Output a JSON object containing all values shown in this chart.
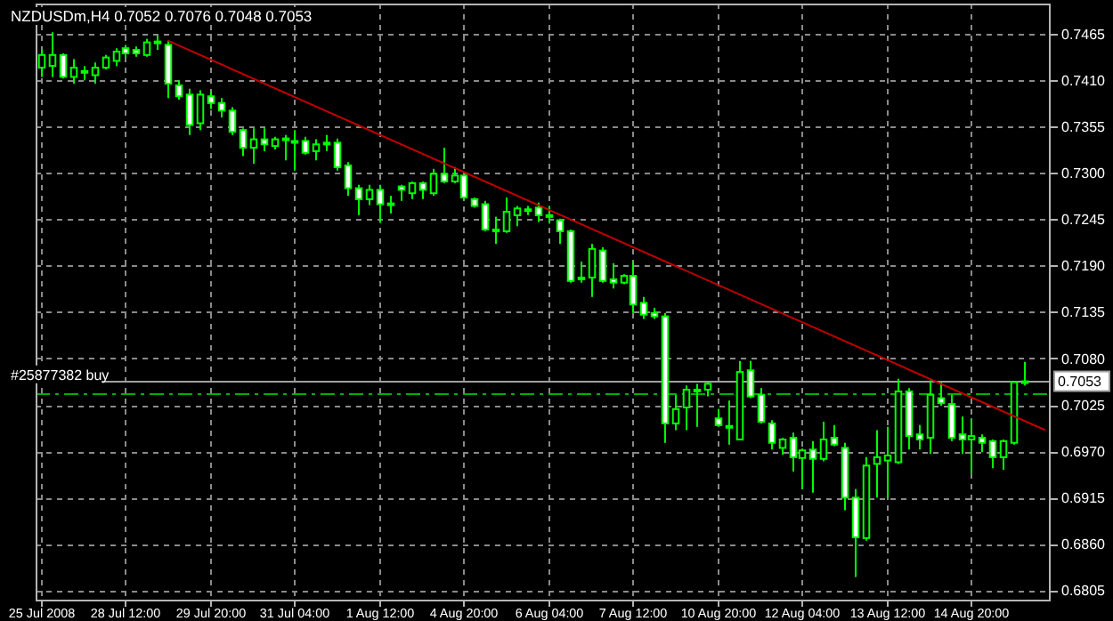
{
  "chart_data": {
    "type": "candlestick",
    "title": "NZDUSDm,H4 0.7052 0.7076 0.7048 0.7053",
    "categories": [
      "25 Jul 2008",
      null,
      null,
      null,
      null,
      null,
      null,
      null,
      "28 Jul 12:00",
      null,
      null,
      null,
      null,
      null,
      null,
      null,
      "29 Jul 20:00",
      null,
      null,
      null,
      null,
      null,
      null,
      null,
      "31 Jul 04:00",
      null,
      null,
      null,
      null,
      null,
      null,
      null,
      "1 Aug 12:00",
      null,
      null,
      null,
      null,
      null,
      null,
      null,
      "4 Aug 20:00",
      null,
      null,
      null,
      null,
      null,
      null,
      null,
      "6 Aug 04:00",
      null,
      null,
      null,
      null,
      null,
      null,
      null,
      "7 Aug 12:00",
      null,
      null,
      null,
      null,
      null,
      null,
      null,
      "10 Aug 20:00",
      null,
      null,
      null,
      null,
      null,
      null,
      null,
      "12 Aug 04:00",
      null,
      null,
      null,
      null,
      null,
      null,
      null,
      "13 Aug 12:00",
      null,
      null,
      null,
      null,
      null,
      null,
      null,
      "14 Aug 20:00",
      null,
      null,
      null,
      null,
      null,
      null,
      null
    ],
    "color": "#00ff00",
    "colors": [
      "#000000",
      "#000000",
      "#ffffff",
      "#000000",
      "#ffffff",
      "#000000",
      "#000000",
      "#000000",
      "#ffffff",
      "#ffffff",
      "#000000",
      "#ffffff",
      "#ffffff",
      "#ffffff",
      "#ffffff",
      "#000000",
      "#ffffff",
      "#ffffff",
      "#ffffff",
      "#ffffff",
      "#000000",
      "#ffffff",
      "#000000",
      "#ffffff",
      "#ffffff",
      "#ffffff",
      "#000000",
      "#ffffff",
      "#ffffff",
      "#ffffff",
      "#ffffff",
      "#000000",
      "#ffffff",
      "#ffffff",
      "#ffffff",
      "#000000",
      "#ffffff",
      "#000000",
      "#ffffff",
      "#000000",
      "#ffffff",
      "#ffffff",
      "#ffffff",
      "#ffffff",
      "#000000",
      "#000000",
      "#ffffff",
      "#ffffff",
      "#ffffff",
      "#ffffff",
      "#ffffff",
      "#ffffff",
      "#000000",
      "#ffffff",
      "#ffffff",
      "#000000",
      "#ffffff",
      "#ffffff",
      "#ffffff",
      "#ffffff",
      "#000000",
      "#000000",
      "#ffffff",
      "#000000",
      "#ffffff",
      "#ffffff",
      "#000000",
      "#ffffff",
      "#ffffff",
      "#ffffff",
      "#000000",
      "#ffffff",
      "#000000",
      "#ffffff",
      "#000000",
      "#ffffff",
      "#ffffff",
      "#ffffff",
      "#000000",
      "#000000",
      "#000000",
      "#000000",
      "#ffffff",
      "#ffffff",
      "#000000",
      "#ffffff",
      "#ffffff",
      "#ffffff",
      "#000000",
      "#ffffff",
      "#ffffff",
      "#000000",
      "#000000",
      "#000000",
      null,
      null
    ],
    "ohlc": [
      [
        0.7425,
        0.7446,
        0.7414,
        0.744
      ],
      [
        0.7427,
        0.7467,
        0.7414,
        0.744
      ],
      [
        0.744,
        0.7442,
        0.7412,
        0.7414
      ],
      [
        0.7414,
        0.7435,
        0.7406,
        0.7425
      ],
      [
        0.7421,
        0.7427,
        0.741,
        0.742
      ],
      [
        0.7416,
        0.7431,
        0.7406,
        0.7425
      ],
      [
        0.7425,
        0.744,
        0.7423,
        0.7437
      ],
      [
        0.7433,
        0.7448,
        0.7427,
        0.7444
      ],
      [
        0.7448,
        0.7452,
        0.7437,
        0.7442
      ],
      [
        0.7446,
        0.745,
        0.7438,
        0.7442
      ],
      [
        0.744,
        0.7459,
        0.7438,
        0.7455
      ],
      [
        0.7456,
        0.7463,
        0.7446,
        0.7455
      ],
      [
        0.7452,
        0.7457,
        0.7389,
        0.7406
      ],
      [
        0.7404,
        0.741,
        0.7387,
        0.7391
      ],
      [
        0.7393,
        0.74,
        0.7345,
        0.7357
      ],
      [
        0.7359,
        0.7398,
        0.7351,
        0.7393
      ],
      [
        0.7391,
        0.7397,
        0.7376,
        0.7383
      ],
      [
        0.7383,
        0.7389,
        0.7366,
        0.7374
      ],
      [
        0.7374,
        0.7378,
        0.7345,
        0.7349
      ],
      [
        0.7351,
        0.7353,
        0.732,
        0.733
      ],
      [
        0.733,
        0.7353,
        0.7311,
        0.734
      ],
      [
        0.734,
        0.7353,
        0.7326,
        0.7334
      ],
      [
        0.7332,
        0.7343,
        0.7328,
        0.734
      ],
      [
        0.7341,
        0.7345,
        0.7315,
        0.7339
      ],
      [
        0.7338,
        0.7351,
        0.7303,
        0.7337
      ],
      [
        0.7338,
        0.7343,
        0.7322,
        0.7324
      ],
      [
        0.7326,
        0.734,
        0.7315,
        0.7334
      ],
      [
        0.7336,
        0.7345,
        0.7326,
        0.7335
      ],
      [
        0.7336,
        0.7341,
        0.7303,
        0.7307
      ],
      [
        0.7309,
        0.7313,
        0.7273,
        0.7282
      ],
      [
        0.7282,
        0.7286,
        0.725,
        0.7269
      ],
      [
        0.7269,
        0.7286,
        0.7262,
        0.728
      ],
      [
        0.728,
        0.7286,
        0.7241,
        0.7263
      ],
      [
        0.7264,
        0.7273,
        0.7252,
        0.7263
      ],
      [
        0.7284,
        0.7286,
        0.7267,
        0.728
      ],
      [
        0.7276,
        0.729,
        0.7269,
        0.7288
      ],
      [
        0.7288,
        0.729,
        0.7269,
        0.728
      ],
      [
        0.7276,
        0.7305,
        0.7273,
        0.7299
      ],
      [
        0.7299,
        0.733,
        0.7288,
        0.729
      ],
      [
        0.729,
        0.7307,
        0.7288,
        0.7297
      ],
      [
        0.7297,
        0.7299,
        0.7269,
        0.7271
      ],
      [
        0.7269,
        0.7271,
        0.7259,
        0.7261
      ],
      [
        0.7263,
        0.7267,
        0.7231,
        0.7233
      ],
      [
        0.7233,
        0.7248,
        0.7216,
        0.7232
      ],
      [
        0.7231,
        0.7271,
        0.7229,
        0.7254
      ],
      [
        0.725,
        0.7261,
        0.7237,
        0.7258
      ],
      [
        0.7257,
        0.7261,
        0.725,
        0.7256
      ],
      [
        0.7259,
        0.7265,
        0.7242,
        0.725
      ],
      [
        0.725,
        0.7261,
        0.724,
        0.7248
      ],
      [
        0.7244,
        0.7246,
        0.7216,
        0.7231
      ],
      [
        0.7231,
        0.7233,
        0.717,
        0.7172
      ],
      [
        0.7176,
        0.7195,
        0.717,
        0.7175
      ],
      [
        0.7176,
        0.7216,
        0.7153,
        0.721
      ],
      [
        0.7208,
        0.7212,
        0.717,
        0.7172
      ],
      [
        0.7174,
        0.7193,
        0.7163,
        0.717
      ],
      [
        0.717,
        0.718,
        0.7168,
        0.7178
      ],
      [
        0.7178,
        0.7195,
        0.7134,
        0.7144
      ],
      [
        0.7146,
        0.7153,
        0.7127,
        0.7132
      ],
      [
        0.7134,
        0.714,
        0.7127,
        0.713
      ],
      [
        0.713,
        0.7134,
        0.698,
        0.7003
      ],
      [
        0.7003,
        0.7037,
        0.6995,
        0.702
      ],
      [
        0.7022,
        0.7048,
        0.6995,
        0.7043
      ],
      [
        0.7043,
        0.705,
        0.6999,
        0.7042
      ],
      [
        0.7043,
        0.7052,
        0.7035,
        0.705
      ],
      [
        0.7009,
        0.702,
        0.6999,
        0.7001
      ],
      [
        0.7,
        0.703,
        0.6978,
        0.6999
      ],
      [
        0.6984,
        0.7077,
        0.6984,
        0.7064
      ],
      [
        0.7066,
        0.7077,
        0.7033,
        0.7035
      ],
      [
        0.7037,
        0.7045,
        0.7003,
        0.7005
      ],
      [
        0.7003,
        0.7007,
        0.6972,
        0.698
      ],
      [
        0.6974,
        0.6986,
        0.6966,
        0.6984
      ],
      [
        0.6986,
        0.6992,
        0.6946,
        0.6963
      ],
      [
        0.6962,
        0.6973,
        0.6925,
        0.6971
      ],
      [
        0.6972,
        0.6982,
        0.6921,
        0.6961
      ],
      [
        0.6961,
        0.7005,
        0.6958,
        0.6984
      ],
      [
        0.6986,
        0.7001,
        0.6976,
        0.6978
      ],
      [
        0.6974,
        0.698,
        0.69,
        0.6915
      ],
      [
        0.6915,
        0.6925,
        0.6821,
        0.6868
      ],
      [
        0.6867,
        0.6963,
        0.6864,
        0.6953
      ],
      [
        0.6955,
        0.6995,
        0.6915,
        0.6963
      ],
      [
        0.6959,
        0.6999,
        0.6915,
        0.6965
      ],
      [
        0.6957,
        0.7056,
        0.6955,
        0.7041
      ],
      [
        0.7041,
        0.7045,
        0.6972,
        0.6988
      ],
      [
        0.699,
        0.7001,
        0.6972,
        0.6984
      ],
      [
        0.6986,
        0.7054,
        0.6967,
        0.7037
      ],
      [
        0.7033,
        0.7052,
        0.7024,
        0.7027
      ],
      [
        0.7026,
        0.7037,
        0.6982,
        0.6986
      ],
      [
        0.699,
        0.7011,
        0.6967,
        0.6984
      ],
      [
        0.6984,
        0.7009,
        0.6944,
        0.6988
      ],
      [
        0.6986,
        0.699,
        0.6969,
        0.698
      ],
      [
        0.6982,
        0.6984,
        0.695,
        0.6963
      ],
      [
        0.6963,
        0.6984,
        0.6948,
        0.6982
      ],
      [
        0.698,
        0.7052,
        0.6978,
        0.7052
      ],
      [
        0.7052,
        0.7076,
        0.7048,
        0.7053
      ],
      null,
      null
    ],
    "series": [
      {
        "type": "line",
        "color": "#c00000",
        "values": [
          null,
          null,
          null,
          null,
          null,
          null,
          null,
          null,
          null,
          null,
          null,
          null,
          0.7457,
          null,
          null,
          null,
          null,
          null,
          null,
          null,
          null,
          null,
          null,
          null,
          null,
          null,
          null,
          null,
          null,
          null,
          null,
          null,
          null,
          null,
          null,
          null,
          null,
          null,
          null,
          null,
          null,
          null,
          null,
          null,
          null,
          null,
          null,
          null,
          null,
          null,
          null,
          null,
          null,
          null,
          null,
          null,
          null,
          null,
          null,
          null,
          null,
          null,
          null,
          null,
          null,
          null,
          null,
          null,
          null,
          null,
          null,
          null,
          null,
          null,
          null,
          null,
          null,
          null,
          null,
          null,
          null,
          null,
          null,
          null,
          null,
          null,
          null,
          null,
          null,
          null,
          null,
          null,
          null,
          null,
          null,
          0.6995
        ]
      }
    ],
    "ylim": [
      0.6794,
      0.7501
    ],
    "yticks": [
      {
        "value": 0.6805,
        "label": "0.6805"
      },
      {
        "value": 0.686,
        "label": "0.6860"
      },
      {
        "value": 0.6915,
        "label": "0.6915"
      },
      {
        "value": 0.697,
        "label": "0.6970"
      },
      {
        "value": 0.7025,
        "label": "0.7025"
      },
      {
        "value": 0.708,
        "label": "0.7080"
      },
      {
        "value": 0.7135,
        "label": "0.7135"
      },
      {
        "value": 0.719,
        "label": "0.7190"
      },
      {
        "value": 0.7245,
        "label": "0.7245"
      },
      {
        "value": 0.73,
        "label": "0.7300"
      },
      {
        "value": 0.7355,
        "label": "0.7355"
      },
      {
        "value": 0.741,
        "label": "0.7410"
      },
      {
        "value": 0.7465,
        "label": "0.7465"
      }
    ],
    "ref_lines": [
      {
        "axis": "y",
        "value": 0.7053,
        "label": "0.7053",
        "color": "#a0a0a0",
        "line_style": "solid"
      },
      {
        "axis": "y",
        "value": 0.7038,
        "label": "#25877382 buy",
        "color": "#00b000",
        "line_style": "dashed"
      }
    ],
    "grid": true
  }
}
